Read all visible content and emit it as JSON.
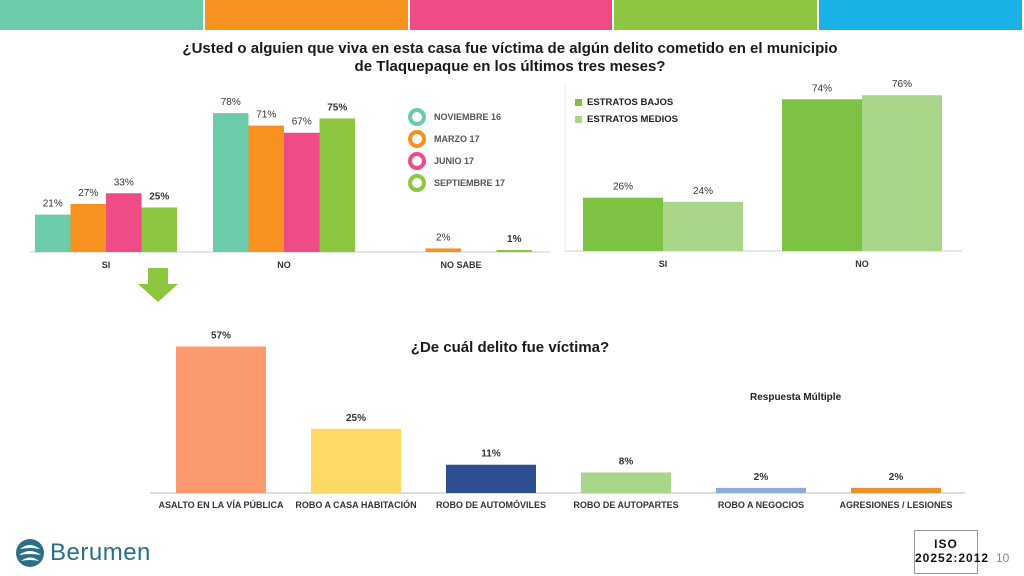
{
  "stripes": [
    "#6ccba9",
    "#f7921e",
    "#ef4b86",
    "#8dc63f",
    "#19b1e6"
  ],
  "title_main": "¿Usted o alguien que viva en esta casa fue víctima de algún delito cometido en el municipio de Tlaquepaque en los últimos tres meses?",
  "title_second": "¿De cuál delito fue víctima?",
  "note": "Respuesta Múltiple",
  "logo_text": "Berumen",
  "cert_text": "ISO 20252:2012",
  "page_number": "10",
  "chart_data": [
    {
      "type": "bar",
      "categories": [
        "SI",
        "NO",
        "NO SABE"
      ],
      "series": [
        {
          "name": "NOVIEMBRE 16",
          "color": "#6ccba9",
          "values": [
            21,
            78,
            null
          ],
          "labels": [
            "21%",
            "78%",
            ""
          ]
        },
        {
          "name": "MARZO 17",
          "color": "#f7921e",
          "values": [
            27,
            71,
            2
          ],
          "labels": [
            "27%",
            "71%",
            "2%"
          ]
        },
        {
          "name": "JUNIO 17",
          "color": "#ef4b86",
          "values": [
            33,
            67,
            null
          ],
          "labels": [
            "33%",
            "67%",
            ""
          ]
        },
        {
          "name": "SEPTIEMBRE 17",
          "color": "#8dc63f",
          "values": [
            25,
            75,
            1
          ],
          "labels": [
            "25%",
            "75%",
            "1%"
          ]
        }
      ],
      "legend_position": "right"
    },
    {
      "type": "bar",
      "categories": [
        "SI",
        "NO"
      ],
      "series": [
        {
          "name": "ESTRATOS BAJOS",
          "color": "#7dc242",
          "values": [
            26,
            74
          ],
          "labels": [
            "26%",
            "74%"
          ]
        },
        {
          "name": "ESTRATOS MEDIOS",
          "color": "#a9d58b",
          "values": [
            24,
            76
          ],
          "labels": [
            "24%",
            "76%"
          ]
        }
      ],
      "legend_position": "top-left"
    },
    {
      "type": "bar",
      "categories": [
        "ASALTO EN LA VÍA PÚBLICA",
        "ROBO A CASA HABITACIÓN",
        "ROBO DE AUTOMÓVILES",
        "ROBO DE AUTOPARTES",
        "ROBO A NEGOCIOS",
        "AGRESIONES / LESIONES"
      ],
      "values": [
        57,
        25,
        11,
        8,
        2,
        2
      ],
      "labels": [
        "57%",
        "25%",
        "11%",
        "8%",
        "2%",
        "2%"
      ],
      "colors": [
        "#fa9a6e",
        "#ffd966",
        "#2e4f8f",
        "#a9d58b",
        "#8eaadb",
        "#e8912d"
      ]
    }
  ]
}
